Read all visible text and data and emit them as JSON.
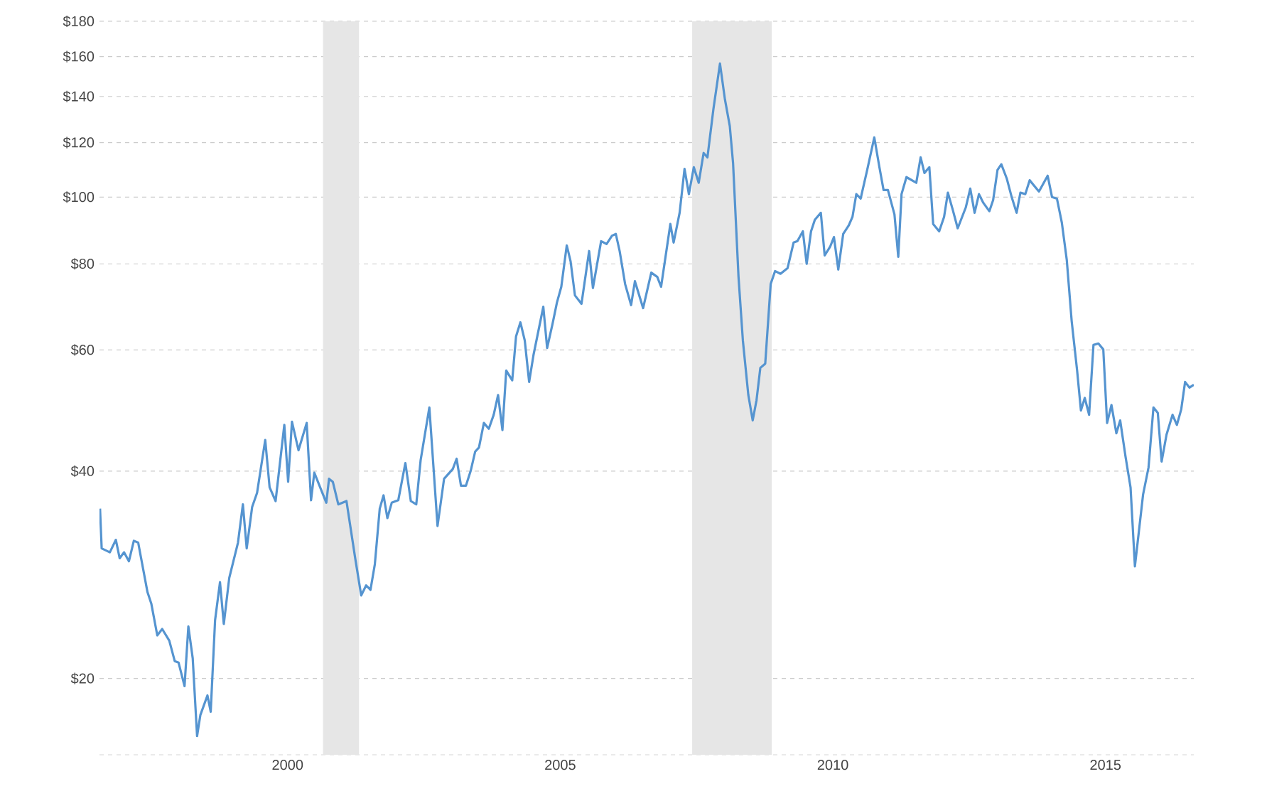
{
  "chart_data": {
    "type": "line",
    "color": "#5594d0",
    "x": [
      1996.56,
      1996.59,
      1996.74,
      1996.85,
      1996.92,
      1997.0,
      1997.09,
      1997.18,
      1997.26,
      1997.43,
      1997.5,
      1997.61,
      1997.7,
      1997.83,
      1997.93,
      1998.0,
      1998.11,
      1998.18,
      1998.26,
      1998.34,
      1998.4,
      1998.53,
      1998.59,
      1998.67,
      1998.76,
      1998.83,
      1998.93,
      1999.09,
      1999.18,
      1999.25,
      1999.35,
      1999.44,
      1999.59,
      1999.67,
      1999.78,
      1999.94,
      2000.01,
      2000.08,
      2000.2,
      2000.35,
      2000.43,
      2000.49,
      2000.71,
      2000.76,
      2000.83,
      2000.93,
      2001.08,
      2001.24,
      2001.35,
      2001.44,
      2001.52,
      2001.6,
      2001.69,
      2001.76,
      2001.83,
      2001.91,
      2002.03,
      2002.16,
      2002.26,
      2002.36,
      2002.44,
      2002.6,
      2002.75,
      2002.87,
      2003.03,
      2003.1,
      2003.18,
      2003.27,
      2003.36,
      2003.44,
      2003.51,
      2003.6,
      2003.69,
      2003.78,
      2003.86,
      2003.94,
      2004.01,
      2004.12,
      2004.19,
      2004.27,
      2004.35,
      2004.43,
      2004.51,
      2004.69,
      2004.76,
      2004.86,
      2004.94,
      2005.02,
      2005.12,
      2005.19,
      2005.27,
      2005.39,
      2005.53,
      2005.6,
      2005.75,
      2005.85,
      2005.95,
      2006.02,
      2006.09,
      2006.19,
      2006.3,
      2006.37,
      2006.52,
      2006.67,
      2006.78,
      2006.85,
      2007.02,
      2007.08,
      2007.19,
      2007.28,
      2007.36,
      2007.45,
      2007.54,
      2007.63,
      2007.7,
      2007.81,
      2007.93,
      2008.02,
      2008.11,
      2008.17,
      2008.27,
      2008.35,
      2008.45,
      2008.53,
      2008.6,
      2008.67,
      2008.76,
      2008.86,
      2008.94,
      2009.04,
      2009.17,
      2009.28,
      2009.35,
      2009.45,
      2009.52,
      2009.6,
      2009.67,
      2009.78,
      2009.85,
      2009.95,
      2010.02,
      2010.1,
      2010.19,
      2010.29,
      2010.36,
      2010.43,
      2010.51,
      2010.63,
      2010.76,
      2010.85,
      2010.93,
      2011.01,
      2011.13,
      2011.2,
      2011.26,
      2011.35,
      2011.53,
      2011.61,
      2011.68,
      2011.77,
      2011.84,
      2011.95,
      2012.04,
      2012.11,
      2012.2,
      2012.29,
      2012.44,
      2012.52,
      2012.6,
      2012.68,
      2012.76,
      2012.87,
      2012.94,
      2013.02,
      2013.09,
      2013.19,
      2013.28,
      2013.37,
      2013.44,
      2013.53,
      2013.61,
      2013.78,
      2013.94,
      2014.02,
      2014.11,
      2014.2,
      2014.29,
      2014.38,
      2014.48,
      2014.55,
      2014.62,
      2014.7,
      2014.78,
      2014.87,
      2014.96,
      2015.03,
      2015.11,
      2015.2,
      2015.27,
      2015.37,
      2015.46,
      2015.54,
      2015.69,
      2015.79,
      2015.88,
      2015.96,
      2016.03,
      2016.12,
      2016.23,
      2016.31,
      2016.39,
      2016.46,
      2016.54,
      2016.62
    ],
    "values": [
      35.3,
      30.9,
      30.5,
      31.8,
      29.9,
      30.5,
      29.6,
      31.7,
      31.5,
      26.7,
      25.7,
      23.1,
      23.6,
      22.7,
      21.2,
      21.1,
      19.5,
      23.8,
      21.4,
      16.5,
      17.7,
      18.9,
      17.9,
      24.3,
      27.6,
      24.0,
      28.0,
      31.5,
      35.8,
      30.9,
      35.5,
      37.2,
      44.4,
      37.9,
      36.2,
      46.7,
      38.6,
      47.2,
      42.9,
      47.0,
      36.3,
      39.8,
      36.0,
      39.0,
      38.6,
      35.8,
      36.2,
      29.9,
      26.4,
      27.3,
      26.9,
      29.3,
      35.3,
      36.9,
      34.2,
      36.0,
      36.3,
      41.1,
      36.2,
      35.8,
      41.5,
      49.5,
      33.3,
      39.0,
      40.3,
      41.7,
      38.1,
      38.1,
      40.1,
      42.7,
      43.3,
      47.0,
      46.1,
      48.3,
      51.6,
      45.9,
      56.0,
      54.2,
      62.8,
      65.8,
      61.9,
      53.9,
      59.0,
      69.3,
      60.4,
      65.5,
      70.3,
      74.1,
      85.1,
      80.7,
      72.0,
      70.0,
      83.5,
      73.8,
      86.3,
      85.5,
      87.9,
      88.4,
      83.5,
      74.8,
      69.7,
      75.5,
      69.0,
      77.7,
      76.6,
      74.1,
      91.4,
      85.9,
      94.9,
      109.9,
      101.0,
      110.5,
      104.9,
      115.9,
      114.2,
      134.3,
      156.3,
      138.8,
      126.8,
      112.1,
      76.6,
      61.9,
      51.6,
      47.4,
      50.7,
      56.5,
      57.3,
      74.8,
      78.1,
      77.4,
      78.9,
      85.9,
      86.3,
      89.2,
      80.0,
      89.2,
      92.7,
      94.9,
      82.3,
      84.7,
      87.5,
      78.5,
      88.4,
      90.9,
      93.6,
      101.0,
      99.5,
      109.5,
      122.1,
      111.0,
      102.4,
      102.4,
      94.4,
      81.9,
      101.0,
      106.9,
      104.9,
      114.2,
      108.4,
      110.5,
      91.4,
      89.2,
      93.6,
      101.5,
      95.8,
      90.1,
      96.7,
      102.9,
      94.9,
      101.0,
      98.1,
      95.4,
      99.0,
      109.5,
      111.6,
      106.4,
      100.0,
      94.9,
      101.5,
      101.0,
      105.8,
      101.9,
      107.4,
      100.0,
      99.5,
      91.8,
      81.1,
      66.1,
      56.0,
      49.0,
      51.1,
      48.3,
      61.0,
      61.3,
      60.1,
      47.0,
      49.9,
      45.4,
      47.4,
      41.9,
      37.9,
      29.1,
      37.0,
      40.5,
      49.5,
      48.6,
      41.3,
      45.2,
      48.3,
      46.7,
      49.2,
      53.9,
      52.9,
      53.4
    ],
    "log": "y",
    "grid": "y",
    "xlim": [
      1996.55,
      2016.62
    ],
    "xticks": [
      2000,
      2005,
      2010,
      2015
    ],
    "ylim": [
      15.5,
      180
    ],
    "yticks": [
      {
        "value": 20,
        "label": "$20"
      },
      {
        "value": 40,
        "label": "$40"
      },
      {
        "value": 60,
        "label": "$60"
      },
      {
        "value": 80,
        "label": "$80"
      },
      {
        "value": 100,
        "label": "$100"
      },
      {
        "value": 120,
        "label": "$120"
      },
      {
        "value": 140,
        "label": "$140"
      },
      {
        "value": 160,
        "label": "$160"
      },
      {
        "value": 180,
        "label": "$180"
      }
    ],
    "bands": [
      {
        "axis": "x",
        "from": 2000.65,
        "to": 2001.31,
        "color": "#e6e6e6"
      },
      {
        "axis": "x",
        "from": 2007.42,
        "to": 2008.88,
        "color": "#e6e6e6"
      }
    ]
  }
}
